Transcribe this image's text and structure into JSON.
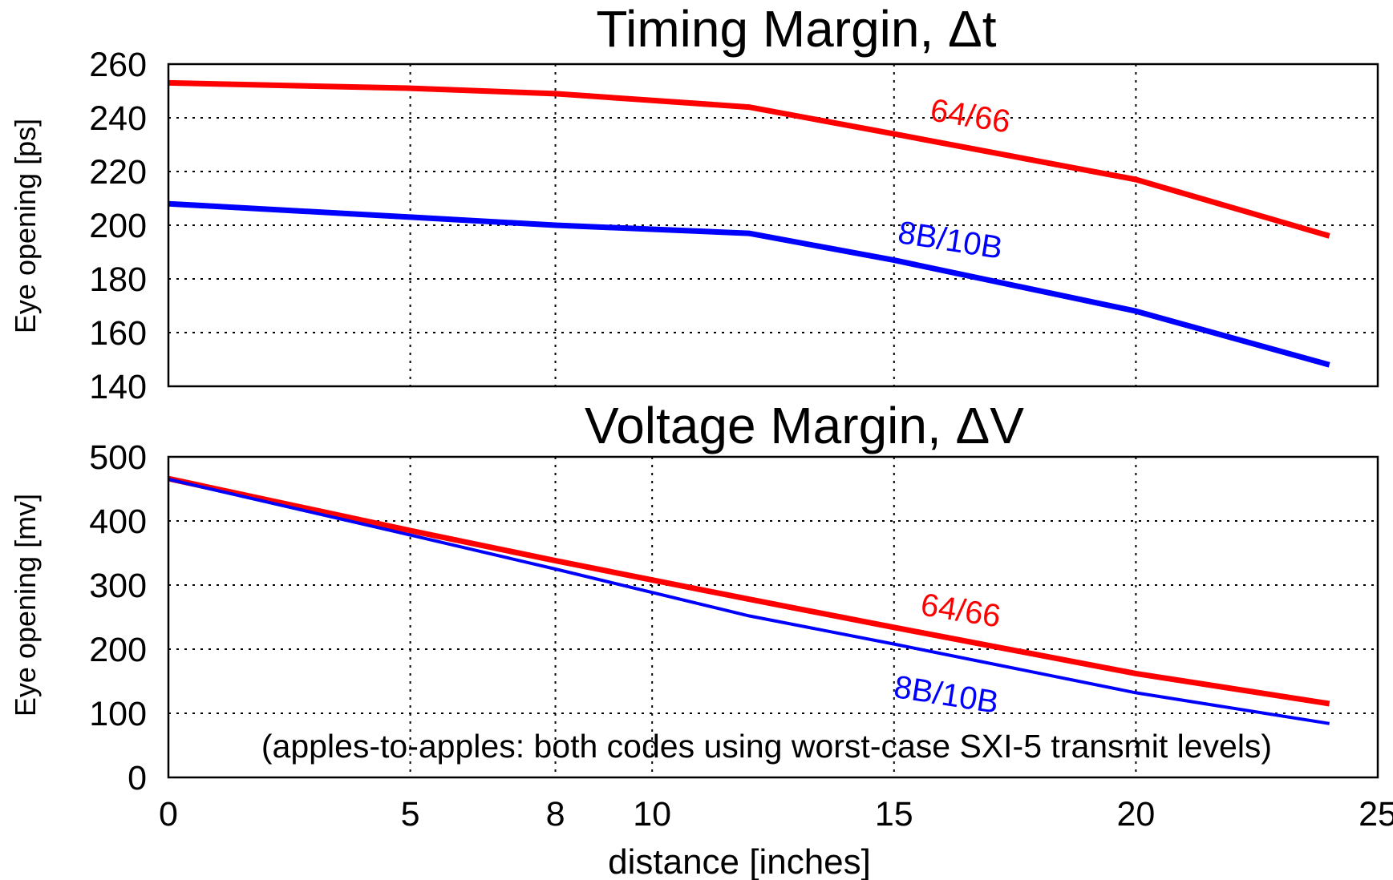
{
  "chart_data": [
    {
      "type": "line",
      "title": "Timing Margin, Δt",
      "xlabel": "",
      "ylabel": "Eye opening [ps]",
      "xlim": [
        0,
        25
      ],
      "ylim": [
        140,
        260
      ],
      "yticks": [
        140,
        160,
        180,
        200,
        220,
        240,
        260
      ],
      "x_grid": [
        5,
        8,
        15,
        20
      ],
      "grid": true,
      "series": [
        {
          "name": "64/66",
          "color": "#ff0000",
          "x": [
            0,
            5,
            8,
            12,
            15,
            20,
            24
          ],
          "y": [
            253,
            251,
            249,
            244,
            234,
            217,
            196
          ]
        },
        {
          "name": "8B/10B",
          "color": "#0000ff",
          "x": [
            0,
            5,
            8,
            12,
            15,
            20,
            24
          ],
          "y": [
            208,
            203,
            200,
            197,
            187,
            168,
            148
          ]
        }
      ]
    },
    {
      "type": "line",
      "title": "Voltage Margin, ΔV",
      "xlabel": "distance [inches]",
      "ylabel": "Eye opening [mv]",
      "xlim": [
        0,
        25
      ],
      "ylim": [
        0,
        500
      ],
      "yticks": [
        0,
        100,
        200,
        300,
        400,
        500
      ],
      "xticks": [
        0,
        5,
        8,
        10,
        15,
        20,
        25
      ],
      "x_grid": [
        5,
        8,
        10,
        15,
        20
      ],
      "grid": true,
      "annotation": "(apples-to-apples: both codes using worst-case SXI-5 transmit levels)",
      "series": [
        {
          "name": "64/66",
          "color": "#ff0000",
          "x": [
            0,
            5,
            8,
            12,
            15,
            20,
            24
          ],
          "y": [
            466,
            385,
            338,
            278,
            234,
            162,
            115
          ]
        },
        {
          "name": "8B/10B",
          "color": "#0000ff",
          "x": [
            0,
            5,
            8,
            12,
            15,
            20,
            24
          ],
          "y": [
            465,
            378,
            325,
            252,
            208,
            132,
            84
          ]
        }
      ]
    }
  ]
}
